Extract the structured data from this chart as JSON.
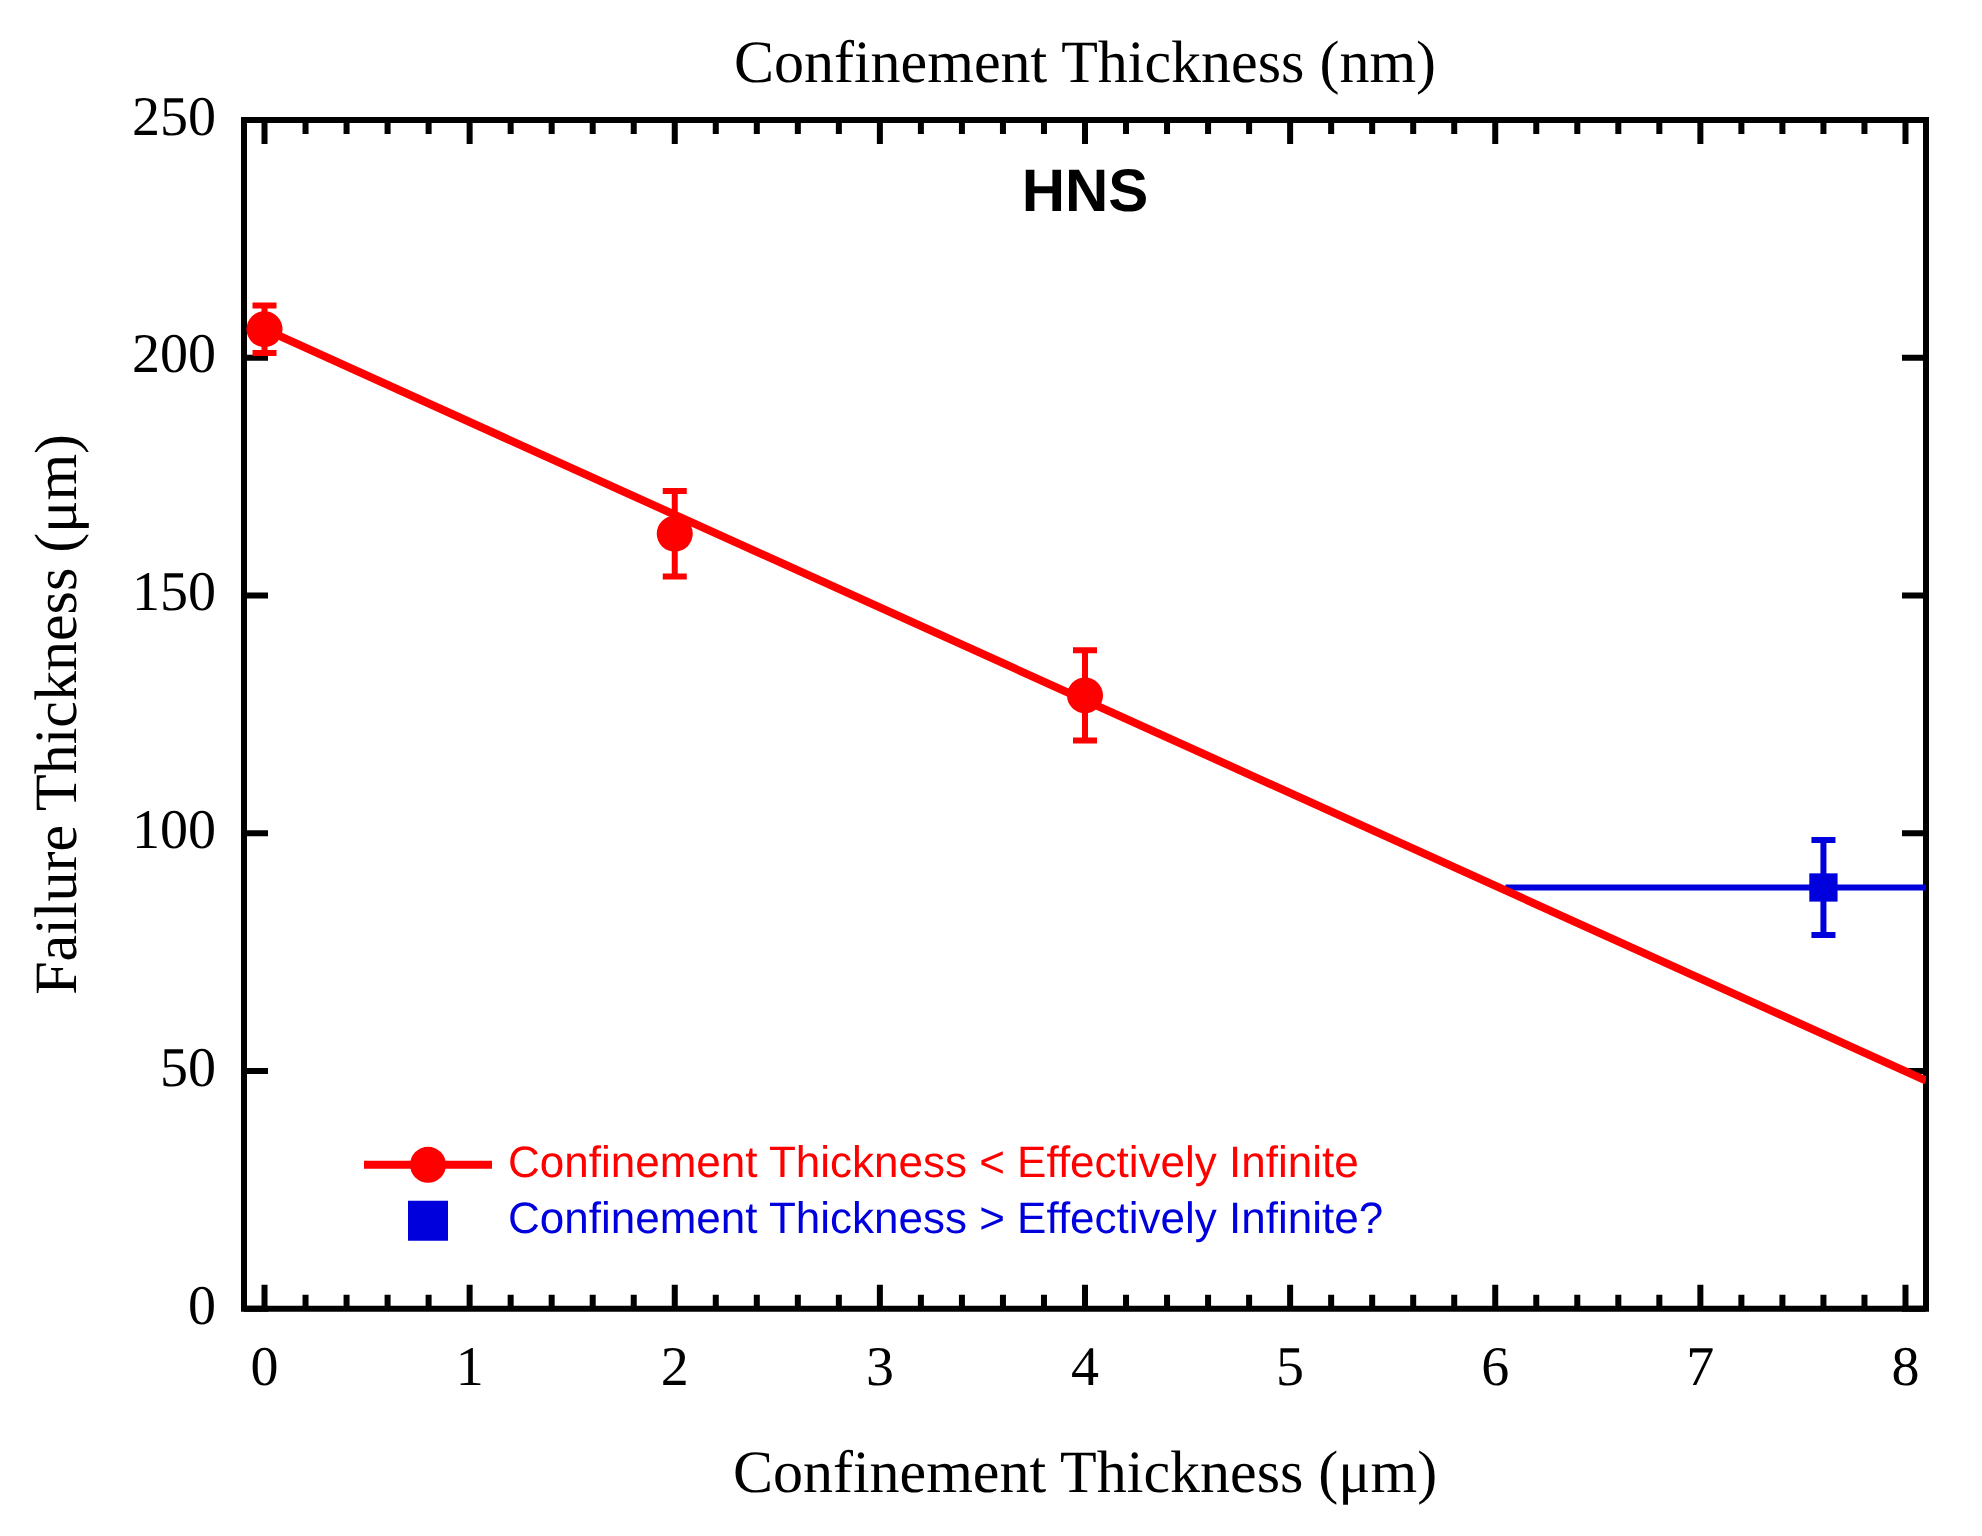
{
  "chart_data": {
    "type": "scatter",
    "title": "HNS",
    "xlabel": "Confinement Thickness (μm)",
    "x2label": "Confinement Thickness (nm)",
    "ylabel": "Failure Thickness (μm)",
    "xlim": [
      -0.1,
      8.1
    ],
    "xticks": [
      0,
      1,
      2,
      3,
      4,
      5,
      6,
      7,
      8
    ],
    "ylim": [
      0,
      250
    ],
    "yticks": [
      0,
      50,
      100,
      150,
      200,
      250
    ],
    "grid": false,
    "legend": "bottom left",
    "series": [
      {
        "name": "Confinement Thickness < Effectively Infinite",
        "color": "#ff0000",
        "type": "scatter",
        "marker": "circle",
        "x": [
          0,
          2,
          4
        ],
        "values": [
          206,
          163,
          129
        ],
        "errors": [
          5,
          9,
          9.5
        ]
      },
      {
        "color": "#ff0000",
        "type": "line",
        "marker": "none",
        "x": [
          0,
          8.1
        ],
        "values": [
          206,
          48
        ]
      },
      {
        "name": "Confinement Thickness > Effectively Infinite?",
        "color": "#0000dd",
        "type": "scatter",
        "marker": "square",
        "x": [
          7.6
        ],
        "values": [
          88.6
        ],
        "errors": [
          10
        ],
        "xerrors": [
          [
            6.05,
            8.1
          ]
        ]
      }
    ]
  }
}
